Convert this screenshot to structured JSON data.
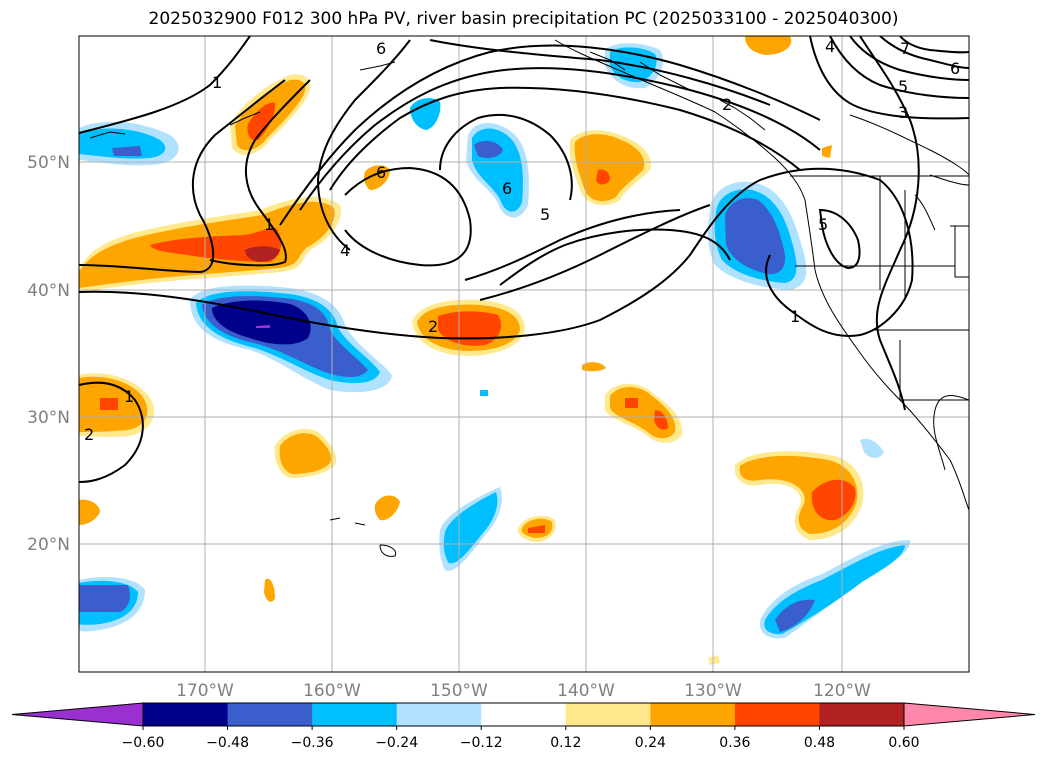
{
  "title": "2025032900 F012 300 hPa PV, river basin precipitation PC (2025033100 - 2025040300)",
  "longitude_labels": [
    "170°W",
    "160°W",
    "150°W",
    "140°W",
    "130°W",
    "120°W"
  ],
  "latitude_labels": [
    "50°N",
    "40°N",
    "30°N",
    "20°N"
  ],
  "colorbar": {
    "tick_labels": [
      "−0.60",
      "−0.48",
      "−0.36",
      "−0.24",
      "−0.12",
      "0.12",
      "0.24",
      "0.36",
      "0.48",
      "0.60"
    ],
    "colors": [
      "#9b30d0",
      "#00008b",
      "#3a5fcd",
      "#00bfff",
      "#b0e2ff",
      "#ffffff",
      "#ffe98c",
      "#ffa500",
      "#ff4500",
      "#b22222",
      "#ff88aa"
    ]
  },
  "pv_contour_labels": [
    "1",
    "2",
    "3",
    "4",
    "5",
    "6",
    "7"
  ],
  "legend_colors": {
    "grid": "#b0b0b0",
    "contour": "#000000",
    "tick_text": "#7f7f7f"
  }
}
